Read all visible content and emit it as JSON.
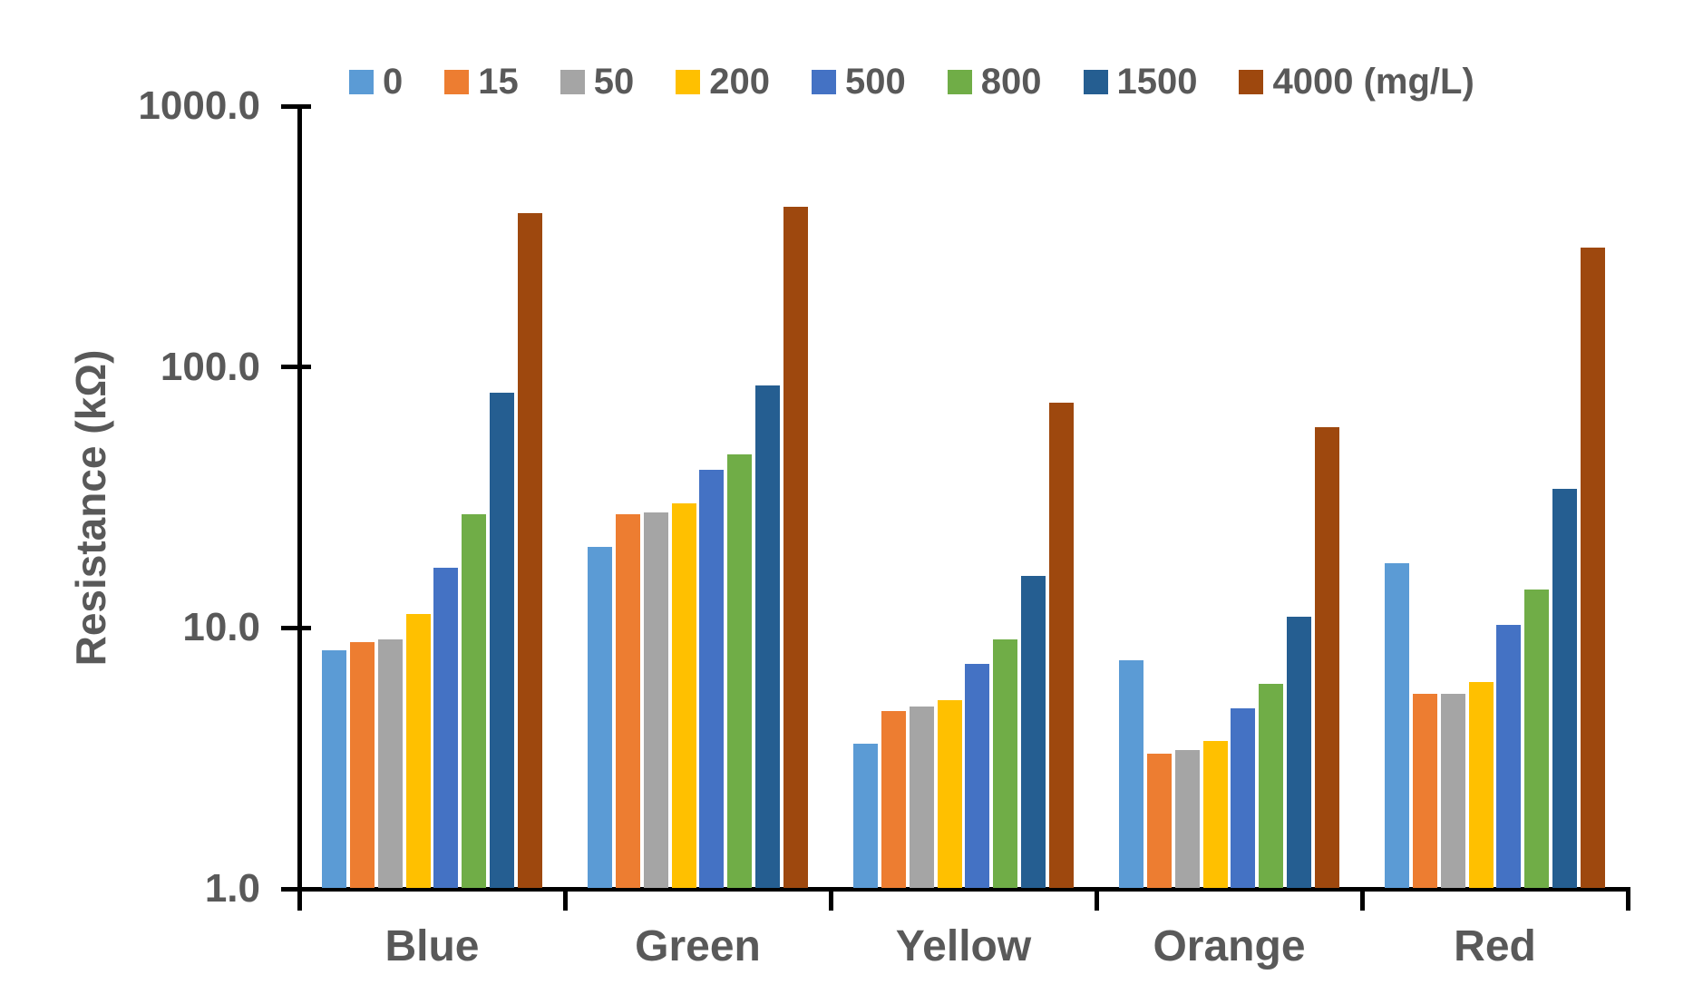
{
  "chart_data": {
    "type": "bar",
    "title": "",
    "xlabel": "",
    "ylabel": "Resistance (kΩ)",
    "y_scale": "log",
    "ylim": [
      1,
      1000
    ],
    "ytick_labels": [
      "1000.0",
      "100.0",
      "10.0",
      "1.0"
    ],
    "ytick_values": [
      1000,
      100,
      10,
      1
    ],
    "grid": "off",
    "legend_position": "top",
    "categories": [
      "Blue",
      "Green",
      "Yellow",
      "Orange",
      "Red"
    ],
    "series": [
      {
        "label": "0",
        "color": "#5B9BD5",
        "values": [
          8.2,
          20.5,
          3.6,
          7.5,
          17.7
        ]
      },
      {
        "label": "15",
        "color": "#ED7D31",
        "values": [
          8.8,
          27.3,
          4.8,
          3.3,
          5.6
        ]
      },
      {
        "label": "50",
        "color": "#A5A5A5",
        "values": [
          9.0,
          27.8,
          5.0,
          3.4,
          5.6
        ]
      },
      {
        "label": "200",
        "color": "#FFC000",
        "values": [
          11.3,
          29.9,
          5.3,
          3.7,
          6.2
        ]
      },
      {
        "label": "500",
        "color": "#4472C4",
        "values": [
          17.0,
          40.5,
          7.3,
          4.9,
          10.3
        ]
      },
      {
        "label": "800",
        "color": "#70AD47",
        "values": [
          27.2,
          46.3,
          9.0,
          6.1,
          14.0
        ]
      },
      {
        "label": "1500",
        "color": "#255E91",
        "values": [
          80,
          85,
          15.8,
          11.0,
          34
        ]
      },
      {
        "label": "4000 (mg/L)",
        "color": "#9E480E",
        "values": [
          390,
          410,
          73,
          59,
          287
        ]
      }
    ],
    "axis_color": "#000000",
    "text_color": "#595959"
  }
}
